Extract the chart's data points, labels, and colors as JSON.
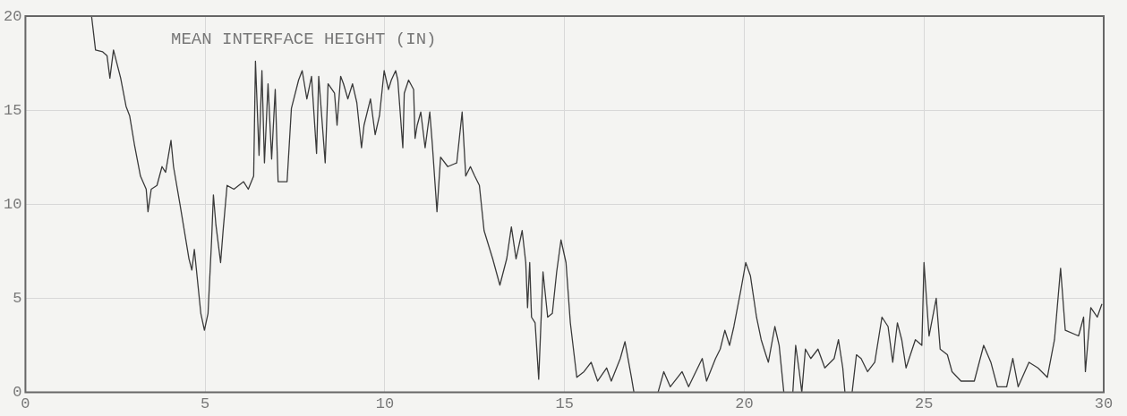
{
  "chart_data": {
    "type": "line",
    "title": "MEAN INTERFACE HEIGHT (IN)",
    "xlim": [
      0,
      30
    ],
    "xticks": [
      0,
      5,
      10,
      15,
      20,
      25,
      30
    ],
    "ylim": [
      0,
      20
    ],
    "yticks": [
      0,
      5,
      10,
      15,
      20
    ],
    "grid": true,
    "legend": false,
    "marker": "none",
    "line_style": "solid",
    "series": [
      {
        "color": "#3a3a3a",
        "x": [
          1.84,
          1.95,
          2.15,
          2.27,
          2.35,
          2.45,
          2.65,
          2.8,
          2.9,
          3.03,
          3.2,
          3.36,
          3.41,
          3.5,
          3.66,
          3.8,
          3.9,
          4.05,
          4.12,
          4.3,
          4.55,
          4.63,
          4.7,
          4.88,
          4.98,
          5.08,
          5.18,
          5.23,
          5.3,
          5.43,
          5.5,
          5.61,
          5.8,
          6.07,
          6.2,
          6.35,
          6.4,
          6.5,
          6.58,
          6.65,
          6.75,
          6.85,
          6.95,
          7.03,
          7.28,
          7.4,
          7.6,
          7.7,
          7.83,
          7.96,
          8.1,
          8.16,
          8.34,
          8.42,
          8.6,
          8.67,
          8.77,
          8.85,
          8.97,
          9.1,
          9.22,
          9.35,
          9.42,
          9.6,
          9.73,
          9.85,
          9.98,
          10.1,
          10.18,
          10.3,
          10.36,
          10.5,
          10.54,
          10.66,
          10.8,
          10.84,
          10.9,
          11,
          11.12,
          11.25,
          11.32,
          11.45,
          11.55,
          11.75,
          12,
          12.15,
          12.25,
          12.38,
          12.5,
          12.63,
          12.76,
          13,
          13.2,
          13.39,
          13.52,
          13.65,
          13.82,
          13.92,
          13.97,
          14.03,
          14.08,
          14.18,
          14.28,
          14.4,
          14.53,
          14.66,
          14.78,
          14.9,
          15.04,
          15.16,
          15.34,
          15.54,
          15.74,
          15.92,
          16.17,
          16.3,
          16.55,
          16.68,
          16.86,
          16.93,
          17.6,
          17.76,
          17.94,
          18.27,
          18.45,
          18.83,
          18.95,
          19.2,
          19.33,
          19.46,
          19.59,
          19.71,
          19.9,
          20.04,
          20.17,
          20.34,
          20.47,
          20.6,
          20.67,
          20.85,
          20.97,
          21.1,
          21.35,
          21.43,
          21.53,
          21.6,
          21.7,
          21.85,
          22.05,
          22.24,
          22.5,
          22.62,
          22.74,
          22.8,
          23,
          23.12,
          23.25,
          23.43,
          23.63,
          23.83,
          24,
          24.13,
          24.26,
          24.38,
          24.5,
          24.76,
          24.94,
          25,
          25.14,
          25.26,
          25.34,
          25.45,
          25.65,
          25.78,
          26.03,
          26.4,
          26.66,
          26.86,
          27.04,
          27.3,
          27.47,
          27.62,
          27.92,
          28.17,
          28.43,
          28.63,
          28.8,
          28.93,
          29.3,
          29.44,
          29.49,
          29.64,
          29.82,
          29.95
        ],
        "values": [
          20,
          18.2,
          18.1,
          17.9,
          16.7,
          18.2,
          16.7,
          15.2,
          14.7,
          13.2,
          11.5,
          10.8,
          9.6,
          10.8,
          11,
          12,
          11.7,
          13.4,
          12,
          10,
          7.1,
          6.5,
          7.6,
          4.2,
          3.3,
          4.2,
          8.1,
          10.5,
          8.9,
          6.9,
          8.6,
          11,
          10.8,
          11.2,
          10.8,
          11.5,
          17.6,
          12.6,
          17.1,
          12.2,
          16.4,
          12.4,
          16.1,
          11.2,
          11.2,
          15.1,
          16.6,
          17.1,
          15.6,
          16.8,
          12.7,
          16.8,
          12.2,
          16.4,
          15.9,
          14.2,
          16.8,
          16.4,
          15.6,
          16.4,
          15.4,
          13,
          14.2,
          15.6,
          13.7,
          14.7,
          17.1,
          16.1,
          16.6,
          17.1,
          16.6,
          13,
          15.9,
          16.6,
          16.1,
          13.5,
          14.2,
          14.9,
          13,
          14.9,
          13.2,
          9.6,
          12.5,
          12,
          12.2,
          14.9,
          11.5,
          12,
          11.5,
          11,
          8.6,
          7.1,
          5.7,
          7.1,
          8.8,
          7.1,
          8.6,
          6.9,
          4.5,
          6.9,
          4,
          3.7,
          0.7,
          6.4,
          4,
          4.2,
          6.4,
          8.1,
          6.9,
          3.7,
          0.8,
          1.1,
          1.6,
          0.6,
          1.3,
          0.6,
          1.8,
          2.7,
          0.8,
          0,
          0,
          1.1,
          0.3,
          1.1,
          0.3,
          1.8,
          0.6,
          1.8,
          2.3,
          3.3,
          2.5,
          3.5,
          5.4,
          6.9,
          6.2,
          4,
          2.8,
          2,
          1.6,
          3.5,
          2.5,
          0,
          0,
          2.5,
          1.1,
          0,
          2.3,
          1.8,
          2.3,
          1.3,
          1.8,
          2.8,
          1.3,
          0,
          0,
          2,
          1.8,
          1.1,
          1.6,
          4,
          3.5,
          1.6,
          3.7,
          2.8,
          1.3,
          2.8,
          2.5,
          6.9,
          3,
          4.2,
          5,
          2.3,
          2,
          1.1,
          0.6,
          0.6,
          2.5,
          1.6,
          0.3,
          0.3,
          1.8,
          0.3,
          1.6,
          1.3,
          0.8,
          2.8,
          6.6,
          3.3,
          3,
          4,
          1.1,
          4.5,
          4,
          4.7
        ]
      }
    ]
  }
}
